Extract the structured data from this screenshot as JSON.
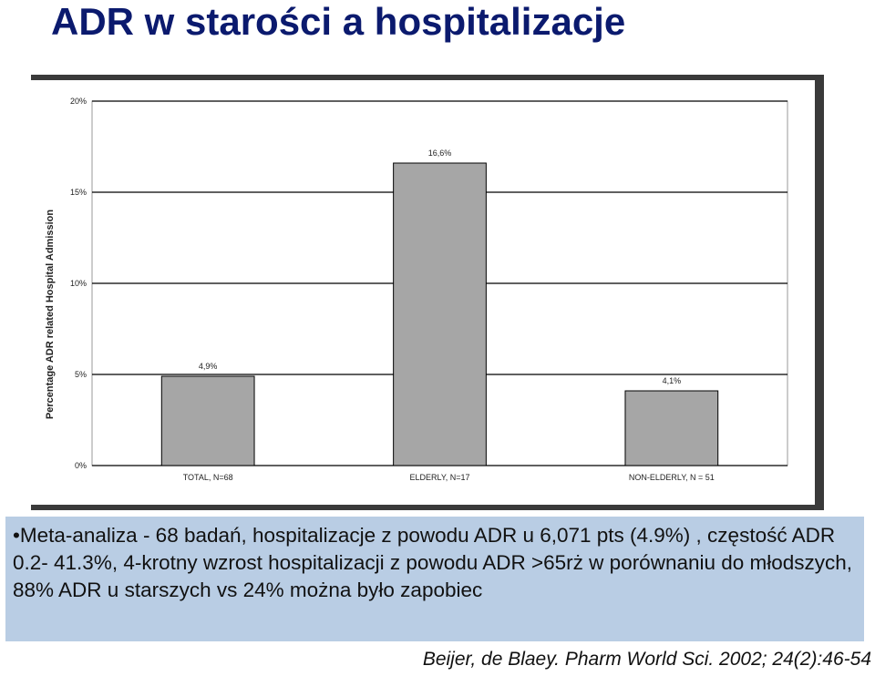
{
  "slide": {
    "title": "ADR w starości a hospitalizacje",
    "summary": "•Meta-analiza - 68 badań, hospitalizacje z powodu ADR  u 6,071 pts (4.9%) , częstość ADR 0.2- 41.3%, 4-krotny wzrost hospitalizacji z powodu ADR >65rż w porównaniu do młodszych, 88% ADR u starszych vs 24% można było zapobiec",
    "citation": "Beijer, de Blaey. Pharm World Sci. 2002; 24(2):46-54"
  },
  "chart_data": {
    "type": "bar",
    "categories": [
      "TOTAL, N=68",
      "ELDERLY, N=17",
      "NON-ELDERLY, N = 51"
    ],
    "values": [
      4.9,
      16.6,
      4.1
    ],
    "data_labels": [
      "4,9%",
      "16,6%",
      "4,1%"
    ],
    "ylabel": "Percentage ADR related Hospital Admission",
    "ylim": [
      0,
      20
    ],
    "yticks": [
      0,
      5,
      10,
      15,
      20
    ],
    "ytick_labels": [
      "0%",
      "5%",
      "10%",
      "15%",
      "20%"
    ],
    "grid": true,
    "legend": "none",
    "colors": {
      "bar": "#a6a6a6",
      "bar_edge": "#000000",
      "grid": "#000000"
    }
  }
}
